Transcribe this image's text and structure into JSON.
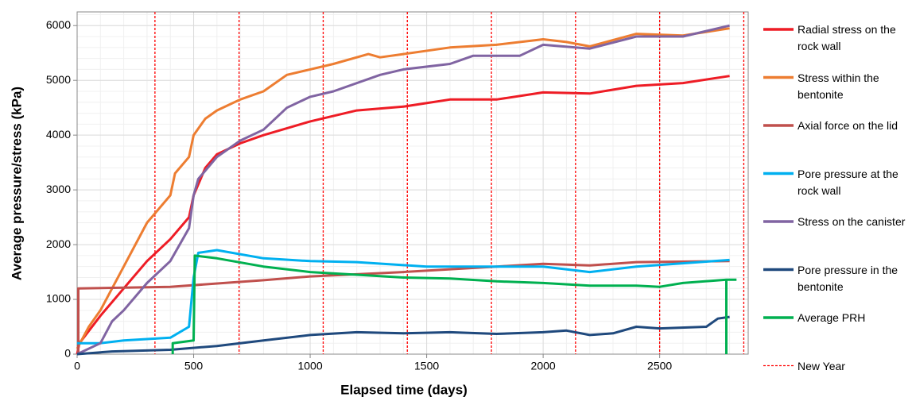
{
  "chart_data": {
    "type": "line",
    "xlabel": "Elapsed time (days)",
    "ylabel": "Average pressure/stress (kPa)",
    "xlim": [
      0,
      2880
    ],
    "xticks": [
      0,
      500,
      1000,
      1500,
      2000,
      2500
    ],
    "ylim": [
      0,
      6250
    ],
    "yticks": [
      0,
      1000,
      2000,
      3000,
      4000,
      5000,
      6000
    ],
    "grid": true,
    "legend": "right",
    "series": [
      {
        "name": "Radial stress on the rock wall",
        "color": "#ee1c25",
        "x": [
          0,
          10,
          100,
          200,
          300,
          400,
          480,
          500,
          550,
          600,
          700,
          800,
          1000,
          1200,
          1400,
          1600,
          1800,
          2000,
          2200,
          2400,
          2600,
          2800
        ],
        "values": [
          0,
          200,
          700,
          1200,
          1700,
          2100,
          2500,
          2900,
          3400,
          3650,
          3850,
          4000,
          4250,
          4450,
          4520,
          4650,
          4650,
          4780,
          4760,
          4900,
          4950,
          5080
        ]
      },
      {
        "name": "Stress within the bentonite",
        "color": "#ed7d31",
        "x": [
          0,
          50,
          100,
          200,
          300,
          400,
          420,
          480,
          500,
          550,
          600,
          700,
          800,
          900,
          1000,
          1100,
          1250,
          1300,
          1400,
          1600,
          1800,
          2000,
          2100,
          2200,
          2400,
          2600,
          2800
        ],
        "values": [
          100,
          500,
          800,
          1600,
          2400,
          2900,
          3300,
          3600,
          4000,
          4300,
          4450,
          4650,
          4800,
          5100,
          5200,
          5300,
          5480,
          5420,
          5480,
          5600,
          5650,
          5750,
          5700,
          5620,
          5850,
          5820,
          5950
        ]
      },
      {
        "name": "Axial force on the lid",
        "color": "#c0504d",
        "x": [
          5,
          5,
          400,
          800,
          1000,
          1400,
          1800,
          2000,
          2200,
          2400,
          2800
        ],
        "values": [
          0,
          1200,
          1230,
          1350,
          1420,
          1500,
          1600,
          1650,
          1620,
          1680,
          1700
        ]
      },
      {
        "name": "Pore pressure at the rock wall",
        "color": "#00b0f0",
        "x": [
          0,
          100,
          200,
          400,
          480,
          500,
          520,
          600,
          800,
          1000,
          1200,
          1500,
          1800,
          2000,
          2200,
          2400,
          2800
        ],
        "values": [
          200,
          200,
          250,
          300,
          500,
          1400,
          1850,
          1900,
          1750,
          1700,
          1680,
          1600,
          1600,
          1600,
          1500,
          1600,
          1720
        ]
      },
      {
        "name": "Stress on the canister",
        "color": "#8064a2",
        "x": [
          0,
          100,
          150,
          200,
          300,
          400,
          480,
          500,
          520,
          600,
          700,
          800,
          900,
          1000,
          1100,
          1300,
          1400,
          1600,
          1700,
          1900,
          2000,
          2200,
          2400,
          2600,
          2800
        ],
        "values": [
          0,
          200,
          600,
          800,
          1300,
          1700,
          2300,
          2900,
          3200,
          3600,
          3900,
          4100,
          4500,
          4700,
          4800,
          5100,
          5200,
          5300,
          5450,
          5450,
          5650,
          5580,
          5800,
          5800,
          6000
        ]
      },
      {
        "name": "Pore pressure in the bentonite",
        "color": "#1f497d",
        "x": [
          0,
          150,
          400,
          600,
          800,
          1000,
          1200,
          1400,
          1600,
          1800,
          2000,
          2100,
          2200,
          2300,
          2400,
          2500,
          2700,
          2750,
          2800
        ],
        "values": [
          0,
          50,
          80,
          150,
          250,
          350,
          400,
          380,
          400,
          370,
          400,
          430,
          350,
          380,
          500,
          470,
          500,
          650,
          680
        ]
      },
      {
        "name": "Average PRH",
        "color": "#00b050",
        "x": [
          410,
          410,
          500,
          505,
          600,
          800,
          1000,
          1200,
          1400,
          1600,
          1800,
          2000,
          2200,
          2400,
          2500,
          2600,
          2786,
          2830,
          null,
          2786,
          2786
        ],
        "values": [
          0,
          200,
          250,
          1800,
          1750,
          1600,
          1500,
          1450,
          1400,
          1380,
          1330,
          1300,
          1250,
          1250,
          1230,
          1300,
          1360,
          1360,
          null,
          1360,
          0
        ]
      }
    ],
    "new_year": {
      "name": "New Year",
      "color": "#ff0000",
      "x": [
        334,
        695,
        1056,
        1417,
        1778,
        2139,
        2500,
        2861
      ]
    }
  }
}
